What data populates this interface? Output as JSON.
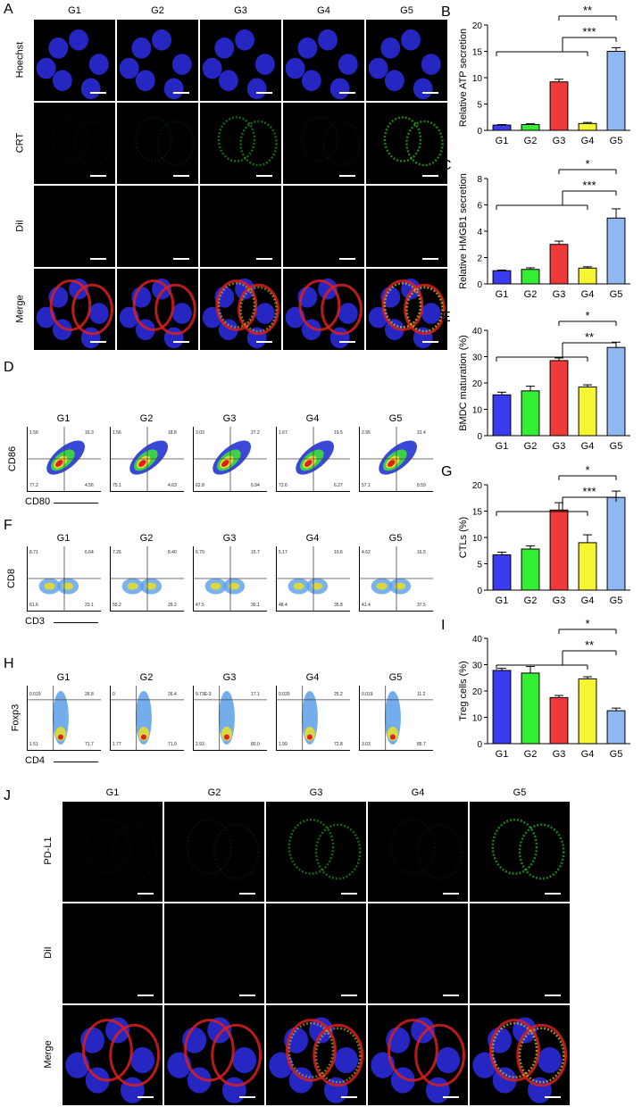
{
  "groups": [
    "G1",
    "G2",
    "G3",
    "G4",
    "G5"
  ],
  "panel_A": {
    "letter": "A",
    "rows": [
      "Hoechst",
      "CRT",
      "DiI",
      "Merge"
    ]
  },
  "panel_D": {
    "letter": "D",
    "y_marker": "CD86",
    "x_marker": "CD80",
    "quadrants": [
      {
        "group": "G1",
        "ul": "1.56",
        "ur": "16.3",
        "ll": "77.2",
        "lr": "4.56"
      },
      {
        "group": "G2",
        "ul": "1.56",
        "ur": "18.8",
        "ll": "75.1",
        "lr": "4.63"
      },
      {
        "group": "G3",
        "ul": "3.03",
        "ur": "27.2",
        "ll": "62.8",
        "lr": "6.94"
      },
      {
        "group": "G4",
        "ul": "1.67",
        "ur": "19.5",
        "ll": "72.6",
        "lr": "6.27"
      },
      {
        "group": "G5",
        "ul": "2.95",
        "ur": "31.4",
        "ll": "57.1",
        "lr": "8.59"
      }
    ]
  },
  "panel_F": {
    "letter": "F",
    "y_marker": "CD8",
    "x_marker": "CD3",
    "quadrants": [
      {
        "group": "G1",
        "ul": "8.71",
        "ur": "6.64",
        "ll": "61.6",
        "lr": "23.1"
      },
      {
        "group": "G2",
        "ul": "7.26",
        "ur": "8.40",
        "ll": "55.2",
        "lr": "29.2"
      },
      {
        "group": "G3",
        "ul": "6.70",
        "ur": "15.7",
        "ll": "47.5",
        "lr": "30.1"
      },
      {
        "group": "G4",
        "ul": "5.17",
        "ur": "10.6",
        "ll": "48.4",
        "lr": "35.8"
      },
      {
        "group": "G5",
        "ul": "4.62",
        "ur": "16.5",
        "ll": "41.4",
        "lr": "37.5"
      }
    ]
  },
  "panel_H": {
    "letter": "H",
    "y_marker": "Foxp3",
    "x_marker": "CD4",
    "quadrants": [
      {
        "group": "G1",
        "ul": "0.019",
        "ur": "26.8",
        "ll": "1.51",
        "lr": "71.7"
      },
      {
        "group": "G2",
        "ul": "0",
        "ur": "26.4",
        "ll": "1.77",
        "lr": "71.9"
      },
      {
        "group": "G3",
        "ul": "9.73E-3",
        "ur": "17.1",
        "ll": "2.93",
        "lr": "80.0"
      },
      {
        "group": "G4",
        "ul": "0.020",
        "ur": "25.2",
        "ll": "1.99",
        "lr": "72.8"
      },
      {
        "group": "G5",
        "ul": "0.019",
        "ur": "11.2",
        "ll": "3.03",
        "lr": "85.7"
      }
    ]
  },
  "panel_J": {
    "letter": "J",
    "rows": [
      "PD-L1",
      "DiI",
      "Merge"
    ]
  },
  "colors": {
    "G1": "#3b3bf0",
    "G2": "#33ee33",
    "G3": "#f03a3a",
    "G4": "#f5f531",
    "G5": "#8fb8f0"
  },
  "chart_data": [
    {
      "letter": "B",
      "type": "bar",
      "categories": [
        "G1",
        "G2",
        "G3",
        "G4",
        "G5"
      ],
      "values": [
        1.0,
        1.1,
        9.2,
        1.3,
        15.0
      ],
      "errors": [
        0.1,
        0.15,
        0.5,
        0.2,
        0.7
      ],
      "ylabel": "Relative ATP secretion",
      "ylim": [
        0,
        20
      ],
      "yticks": [
        0,
        5,
        10,
        15,
        20
      ],
      "sig_top": "**",
      "sig_bottom": "***"
    },
    {
      "letter": "C",
      "type": "bar",
      "categories": [
        "G1",
        "G2",
        "G3",
        "G4",
        "G5"
      ],
      "values": [
        1.0,
        1.1,
        3.0,
        1.2,
        5.0
      ],
      "errors": [
        0.05,
        0.12,
        0.25,
        0.1,
        0.7
      ],
      "ylabel": "Relative HMGB1 secretion",
      "ylim": [
        0,
        8
      ],
      "yticks": [
        0,
        2,
        4,
        6,
        8
      ],
      "sig_top": "*",
      "sig_bottom": "***"
    },
    {
      "letter": "E",
      "type": "bar",
      "categories": [
        "G1",
        "G2",
        "G3",
        "G4",
        "G5"
      ],
      "values": [
        15.5,
        17.0,
        28.5,
        18.5,
        33.5
      ],
      "errors": [
        1.0,
        1.8,
        1.0,
        0.8,
        2.0
      ],
      "ylabel": "BMDC maturation (%)",
      "ylim": [
        0,
        40
      ],
      "yticks": [
        0,
        10,
        20,
        30,
        40
      ],
      "sig_top": "*",
      "sig_bottom": "**"
    },
    {
      "letter": "G",
      "type": "bar",
      "categories": [
        "G1",
        "G2",
        "G3",
        "G4",
        "G5"
      ],
      "values": [
        6.7,
        7.8,
        15.2,
        9.0,
        17.6
      ],
      "errors": [
        0.5,
        0.6,
        1.4,
        1.5,
        1.2
      ],
      "ylabel": "CTLs (%)",
      "ylim": [
        0,
        20
      ],
      "yticks": [
        0,
        5,
        10,
        15,
        20
      ],
      "sig_top": "*",
      "sig_bottom": "***"
    },
    {
      "letter": "I",
      "type": "bar",
      "categories": [
        "G1",
        "G2",
        "G3",
        "G4",
        "G5"
      ],
      "values": [
        27.8,
        26.8,
        17.5,
        24.6,
        12.5
      ],
      "errors": [
        0.8,
        2.5,
        0.8,
        0.8,
        1.0
      ],
      "ylabel": "Treg cells (%)",
      "ylim": [
        0,
        40
      ],
      "yticks": [
        0,
        10,
        20,
        30,
        40
      ],
      "sig_top": "*",
      "sig_bottom": "**"
    }
  ]
}
